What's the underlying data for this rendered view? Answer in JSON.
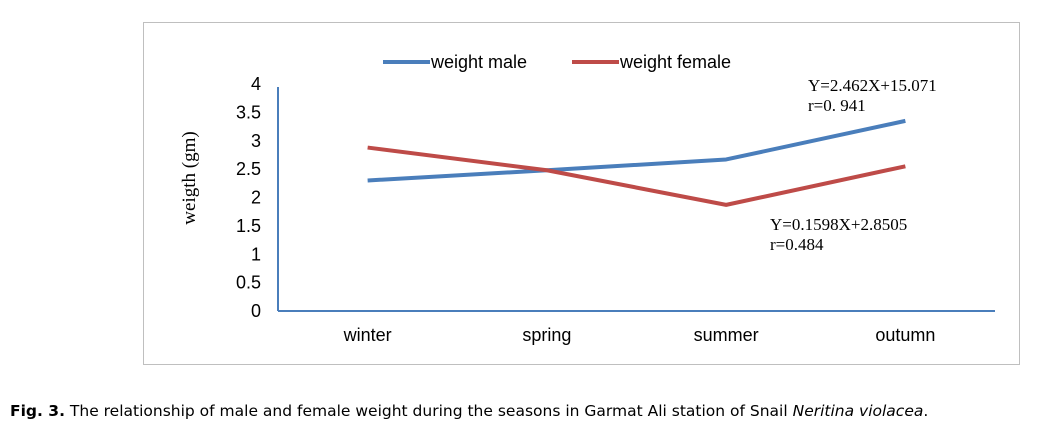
{
  "chart_data": {
    "type": "line",
    "categories": [
      "winter",
      "spring",
      "summer",
      "outumn"
    ],
    "series": [
      {
        "name": "weight male",
        "color": "#4a7ebb",
        "values": [
          2.3,
          2.48,
          2.67,
          3.35
        ]
      },
      {
        "name": "weight female",
        "color": "#be4b48",
        "values": [
          2.88,
          2.48,
          1.87,
          2.55
        ]
      }
    ],
    "ylabel": "weigth (gm)",
    "xlabel": "",
    "ylim": [
      0,
      4
    ],
    "yticks": [
      "0",
      "0.5",
      "1",
      "1.5",
      "2",
      "2.5",
      "3",
      "3.5",
      "4"
    ],
    "grid": false,
    "legend": "top",
    "annotations": {
      "male_eq": "Y=2.462X+15.071",
      "male_r": "r=0. 941",
      "female_eq": "Y=0.1598X+2.8505",
      "female_r": "r=0.484"
    }
  },
  "caption": {
    "fig_label": "Fig. 3.",
    "text": " The relationship of male and female weight during the seasons in Garmat Ali station of Snail ",
    "species": "Neritina violacea",
    "end": "."
  }
}
